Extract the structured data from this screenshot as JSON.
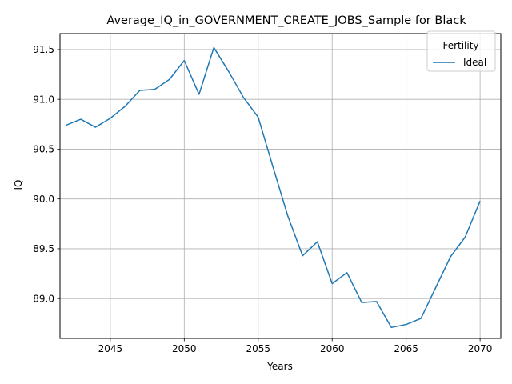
{
  "chart_data": {
    "type": "line",
    "title": "Average_IQ_in_GOVERNMENT_CREATE_JOBS_Sample for Black",
    "xlabel": "Years",
    "ylabel": "IQ",
    "xlim": [
      2041.6,
      2071.4
    ],
    "ylim": [
      88.6,
      91.66
    ],
    "x_ticks": [
      2045,
      2050,
      2055,
      2060,
      2065,
      2070
    ],
    "y_ticks": [
      89.0,
      89.5,
      90.0,
      90.5,
      91.0,
      91.5
    ],
    "grid": true,
    "legend": {
      "title": "Fertility",
      "placement": "top-right"
    },
    "series": [
      {
        "name": "Ideal",
        "color": "#1f77b4",
        "x": [
          2042,
          2043,
          2044,
          2045,
          2046,
          2047,
          2048,
          2049,
          2050,
          2051,
          2052,
          2053,
          2054,
          2055,
          2056,
          2057,
          2058,
          2059,
          2060,
          2061,
          2062,
          2063,
          2064,
          2065,
          2066,
          2067,
          2068,
          2069,
          2070
        ],
        "y": [
          90.74,
          90.8,
          90.72,
          90.81,
          90.93,
          91.09,
          91.1,
          91.2,
          91.39,
          91.05,
          91.52,
          91.28,
          91.02,
          90.82,
          90.32,
          89.83,
          89.43,
          89.57,
          89.15,
          89.26,
          88.96,
          88.97,
          88.71,
          88.74,
          88.8,
          89.11,
          89.42,
          89.62,
          89.98
        ]
      }
    ]
  }
}
